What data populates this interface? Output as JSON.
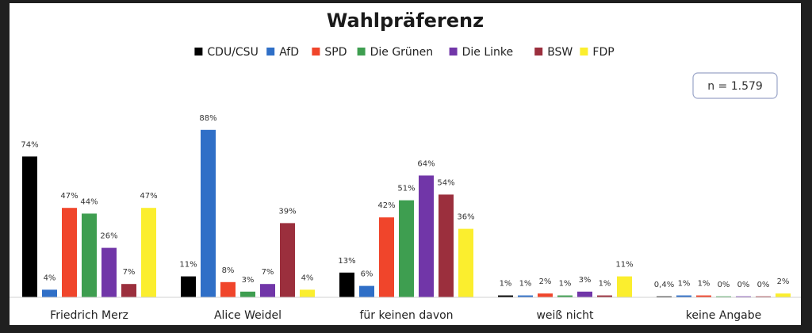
{
  "chart_data": {
    "type": "bar",
    "title": "Wahlpräferenz",
    "note": "n = 1.579",
    "legend_position": "top",
    "categories": [
      "Friedrich Merz",
      "Alice Weidel",
      "für keinen davon",
      "weiß nicht",
      "keine Angabe"
    ],
    "ylim": [
      0,
      100
    ],
    "series": [
      {
        "name": "CDU/CSU",
        "color": "#000000",
        "values": [
          74,
          11,
          13,
          1,
          0.4
        ],
        "labels": [
          "74%",
          "11%",
          "13%",
          "1%",
          "0,4%"
        ]
      },
      {
        "name": "AfD",
        "color": "#2f6fc7",
        "values": [
          4,
          88,
          6,
          1,
          1
        ],
        "labels": [
          "4%",
          "88%",
          "6%",
          "1%",
          "1%"
        ]
      },
      {
        "name": "SPD",
        "color": "#f0452b",
        "values": [
          47,
          8,
          42,
          2,
          1
        ],
        "labels": [
          "47%",
          "8%",
          "42%",
          "2%",
          "1%"
        ]
      },
      {
        "name": "Die Grünen",
        "color": "#3e9e50",
        "values": [
          44,
          3,
          51,
          1,
          0
        ],
        "labels": [
          "44%",
          "3%",
          "51%",
          "1%",
          "0%"
        ]
      },
      {
        "name": "Die Linke",
        "color": "#7136a8",
        "values": [
          26,
          7,
          64,
          3,
          0
        ],
        "labels": [
          "26%",
          "7%",
          "64%",
          "3%",
          "0%"
        ]
      },
      {
        "name": "BSW",
        "color": "#9b2f3d",
        "values": [
          7,
          39,
          54,
          1,
          0
        ],
        "labels": [
          "7%",
          "39%",
          "54%",
          "1%",
          "0%"
        ]
      },
      {
        "name": "FDP",
        "color": "#fbee2e",
        "values": [
          47,
          4,
          36,
          11,
          2
        ],
        "labels": [
          "47%",
          "4%",
          "36%",
          "11%",
          "2%"
        ]
      }
    ]
  }
}
